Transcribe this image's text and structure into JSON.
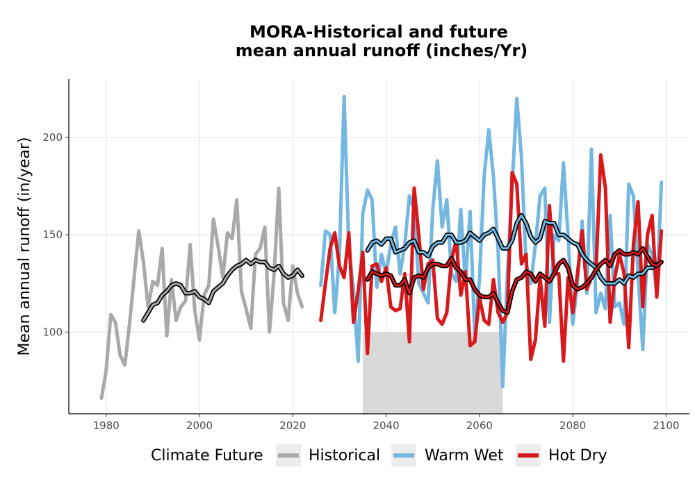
{
  "chart_data": {
    "type": "line",
    "title_lines": [
      "MORA-Historical and future",
      "mean annual runoff (inches/Yr)"
    ],
    "xlabel": "",
    "ylabel": "Mean annual runoff (in/year)",
    "xlim": [
      1972,
      2105
    ],
    "ylim": [
      58,
      230
    ],
    "x_ticks": [
      1980,
      2000,
      2020,
      2040,
      2060,
      2080,
      2100
    ],
    "y_ticks": [
      100,
      150,
      200
    ],
    "grid": true,
    "shaded_period": {
      "x": [
        2035,
        2065
      ],
      "y": [
        58,
        100
      ],
      "color": "#d9d9d9"
    },
    "legend": {
      "title": "Climate Future",
      "position": "bottom",
      "entries": [
        {
          "label": "Historical",
          "color": "#a9a9a9"
        },
        {
          "label": "Warm Wet",
          "color": "#74b7e0"
        },
        {
          "label": "Hot Dry",
          "color": "#d7191c"
        }
      ]
    },
    "series": [
      {
        "name": "Historical",
        "color": "#a9a9a9",
        "x_start": 1979,
        "values": [
          66,
          80,
          109,
          105,
          88,
          83,
          104,
          128,
          152,
          136,
          113,
          126,
          124,
          143,
          98,
          127,
          106,
          113,
          116,
          145,
          111,
          96,
          119,
          124,
          158,
          144,
          128,
          151,
          148,
          168,
          121,
          112,
          102,
          140,
          143,
          154,
          100,
          130,
          174,
          115,
          106,
          134,
          120,
          113
        ],
        "moving_avg": {
          "x_start": 1988,
          "values": [
            106,
            110,
            114,
            115,
            119,
            121,
            124,
            125,
            124,
            120,
            120,
            121,
            118,
            117,
            115,
            121,
            123,
            125,
            129,
            132,
            134,
            135,
            137,
            135,
            137,
            136,
            136,
            133,
            132,
            134,
            130,
            128,
            129,
            132,
            129
          ]
        }
      },
      {
        "name": "Warm Wet",
        "color": "#74b7e0",
        "x_start": 2026,
        "values": [
          124,
          152,
          150,
          110,
          140,
          221,
          143,
          122,
          85,
          161,
          173,
          168,
          123,
          140,
          130,
          145,
          154,
          130,
          145,
          170,
          163,
          125,
          120,
          115,
          163,
          188,
          154,
          168,
          130,
          126,
          163,
          125,
          162,
          99,
          127,
          180,
          204,
          180,
          142,
          72,
          130,
          175,
          220,
          190,
          135,
          125,
          145,
          170,
          174,
          105,
          150,
          147,
          187,
          149,
          104,
          125,
          157,
          120,
          194,
          110,
          120,
          112,
          160,
          113,
          115,
          104,
          176,
          170,
          130,
          91,
          145,
          140,
          120,
          177
        ],
        "moving_avg": {
          "x_start": 2036,
          "values": [
            142,
            146,
            147,
            145,
            148,
            148,
            141,
            142,
            143,
            146,
            147,
            141,
            141,
            139,
            144,
            146,
            146,
            150,
            150,
            146,
            146,
            147,
            151,
            149,
            147,
            150,
            151,
            153,
            148,
            143,
            143,
            147,
            156,
            160,
            156,
            149,
            146,
            148,
            157,
            156,
            156,
            150,
            150,
            148,
            146,
            145,
            140,
            137,
            135,
            133,
            128,
            125,
            125,
            125,
            127,
            125,
            129,
            128,
            130,
            130,
            133,
            133,
            135
          ]
        }
      },
      {
        "name": "Hot Dry",
        "color": "#d7191c",
        "x_start": 2026,
        "values": [
          106,
          125,
          143,
          151,
          134,
          128,
          151,
          105,
          121,
          141,
          89,
          134,
          135,
          126,
          133,
          113,
          111,
          112,
          130,
          95,
          174,
          150,
          122,
          135,
          137,
          107,
          104,
          110,
          137,
          147,
          119,
          131,
          93,
          95,
          118,
          106,
          104,
          127,
          110,
          105,
          110,
          182,
          176,
          135,
          140,
          86,
          96,
          128,
          103,
          165,
          130,
          130,
          85,
          128,
          110,
          130,
          152,
          122,
          128,
          133,
          191,
          174,
          105,
          128,
          140,
          130,
          92,
          145,
          167,
          113,
          150,
          160,
          118,
          152
        ],
        "moving_avg": {
          "x_start": 2036,
          "values": [
            127,
            131,
            130,
            129,
            130,
            129,
            124,
            124,
            127,
            120,
            128,
            129,
            128,
            133,
            135,
            135,
            134,
            134,
            138,
            133,
            131,
            127,
            127,
            122,
            119,
            118,
            118,
            120,
            115,
            111,
            110,
            121,
            127,
            128,
            131,
            130,
            126,
            130,
            128,
            126,
            130,
            135,
            137,
            133,
            124,
            122,
            123,
            125,
            128,
            132,
            135,
            137,
            134,
            140,
            142,
            140,
            140,
            141,
            140,
            143,
            139,
            135,
            134,
            136
          ]
        }
      }
    ]
  }
}
